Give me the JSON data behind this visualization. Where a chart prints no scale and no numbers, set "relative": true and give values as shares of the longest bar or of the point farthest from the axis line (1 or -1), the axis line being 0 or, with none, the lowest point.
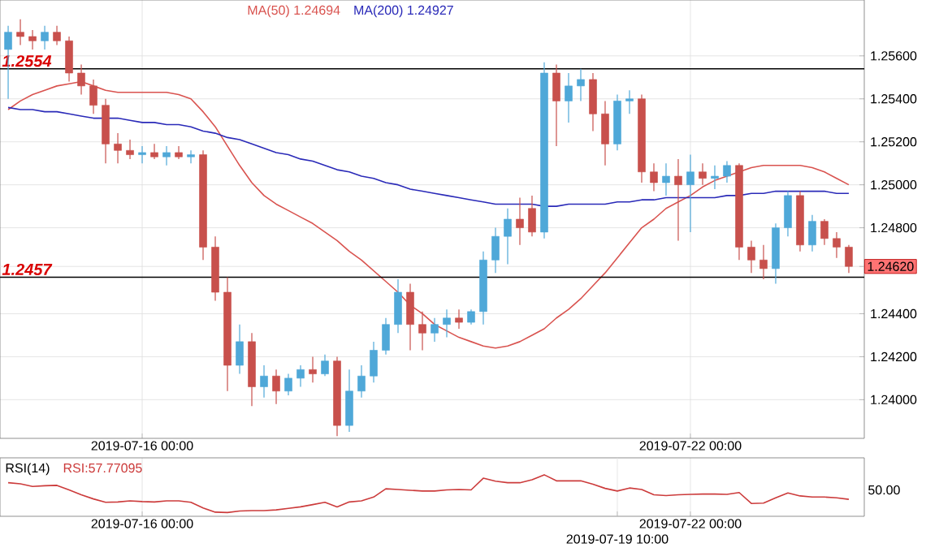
{
  "chart_data": [
    {
      "type": "candlestick",
      "categories": [
        null,
        null,
        null,
        null,
        null,
        null,
        null,
        null,
        null,
        null,
        null,
        "2019-07-16 00:00",
        null,
        null,
        null,
        null,
        null,
        null,
        null,
        null,
        null,
        null,
        null,
        null,
        null,
        null,
        null,
        null,
        null,
        null,
        null,
        null,
        null,
        null,
        null,
        null,
        null,
        null,
        null,
        null,
        null,
        null,
        null,
        null,
        null,
        null,
        null,
        null,
        null,
        null,
        null,
        null,
        null,
        null,
        null,
        null,
        "2019-07-22 00:00",
        null,
        null,
        null,
        null,
        null,
        null,
        null,
        null,
        null,
        null,
        null,
        null,
        null
      ],
      "ohlc": [
        [
          1.2563,
          1.2574,
          1.254,
          1.2571
        ],
        [
          1.2571,
          1.2577,
          1.2565,
          1.2569
        ],
        [
          1.2569,
          1.2572,
          1.2563,
          1.2567
        ],
        [
          1.2567,
          1.2574,
          1.2563,
          1.2571
        ],
        [
          1.2571,
          1.2574,
          1.2565,
          1.2567
        ],
        [
          1.2567,
          1.2569,
          1.2548,
          1.2552
        ],
        [
          1.2552,
          1.2556,
          1.2542,
          1.2546
        ],
        [
          1.2546,
          1.2549,
          1.2533,
          1.2537
        ],
        [
          1.2537,
          1.254,
          1.251,
          1.2519
        ],
        [
          1.2519,
          1.2524,
          1.251,
          1.2516
        ],
        [
          1.2516,
          1.2521,
          1.2512,
          1.2514
        ],
        [
          1.2514,
          1.2518,
          1.251,
          1.2515
        ],
        [
          1.2515,
          1.2519,
          1.2512,
          1.2513
        ],
        [
          1.2513,
          1.2518,
          1.2509,
          1.2515
        ],
        [
          1.2515,
          1.2518,
          1.2512,
          1.2513
        ],
        [
          1.2513,
          1.2516,
          1.251,
          1.2514
        ],
        [
          1.2514,
          1.2516,
          1.2465,
          1.2471
        ],
        [
          1.2471,
          1.2476,
          1.2446,
          1.245
        ],
        [
          1.245,
          1.2457,
          1.2404,
          1.2416
        ],
        [
          1.2416,
          1.2435,
          1.2412,
          1.2427
        ],
        [
          1.2427,
          1.2431,
          1.2397,
          1.2406
        ],
        [
          1.2406,
          1.2416,
          1.2401,
          1.2411
        ],
        [
          1.2411,
          1.2414,
          1.2398,
          1.2404
        ],
        [
          1.2404,
          1.2412,
          1.2402,
          1.241
        ],
        [
          1.241,
          1.2416,
          1.2406,
          1.2414
        ],
        [
          1.2414,
          1.242,
          1.2408,
          1.2412
        ],
        [
          1.2412,
          1.2421,
          1.2411,
          1.2418
        ],
        [
          1.2418,
          1.242,
          1.2383,
          1.2388
        ],
        [
          1.2388,
          1.2414,
          1.2385,
          1.2404
        ],
        [
          1.2404,
          1.2416,
          1.2401,
          1.2411
        ],
        [
          1.2411,
          1.2427,
          1.2408,
          1.2423
        ],
        [
          1.2423,
          1.2438,
          1.2421,
          1.2435
        ],
        [
          1.2435,
          1.2456,
          1.2431,
          1.245
        ],
        [
          1.245,
          1.2454,
          1.2423,
          1.2435
        ],
        [
          1.2435,
          1.2441,
          1.2423,
          1.2431
        ],
        [
          1.2431,
          1.2438,
          1.2427,
          1.2435
        ],
        [
          1.2435,
          1.2442,
          1.2429,
          1.2438
        ],
        [
          1.2438,
          1.2442,
          1.2433,
          1.2436
        ],
        [
          1.2436,
          1.2442,
          1.2435,
          1.2441
        ],
        [
          1.2441,
          1.2469,
          1.2435,
          1.2465
        ],
        [
          1.2465,
          1.248,
          1.2459,
          1.2476
        ],
        [
          1.2476,
          1.2489,
          1.2463,
          1.2484
        ],
        [
          1.2484,
          1.2494,
          1.2472,
          1.248
        ],
        [
          1.2489,
          1.2495,
          1.2476,
          1.2478
        ],
        [
          1.2478,
          1.2557,
          1.2475,
          1.2552
        ],
        [
          1.2552,
          1.2556,
          1.2518,
          1.2539
        ],
        [
          1.2539,
          1.2552,
          1.2529,
          1.2546
        ],
        [
          1.2546,
          1.2554,
          1.2539,
          1.2549
        ],
        [
          1.2549,
          1.2552,
          1.2525,
          1.2533
        ],
        [
          1.2533,
          1.2539,
          1.2509,
          1.2519
        ],
        [
          1.2519,
          1.2542,
          1.2516,
          1.2539
        ],
        [
          1.2539,
          1.2544,
          1.2533,
          1.254
        ],
        [
          1.254,
          1.2542,
          1.2501,
          1.2506
        ],
        [
          1.2506,
          1.251,
          1.2497,
          1.2501
        ],
        [
          1.2501,
          1.251,
          1.2495,
          1.2504
        ],
        [
          1.2504,
          1.2512,
          1.2474,
          1.25
        ],
        [
          1.25,
          1.2514,
          1.2478,
          1.2506
        ],
        [
          1.2506,
          1.251,
          1.25,
          1.2503
        ],
        [
          1.2503,
          1.2509,
          1.2498,
          1.2504
        ],
        [
          1.2504,
          1.2511,
          1.2501,
          1.2509
        ],
        [
          1.2509,
          1.251,
          1.2465,
          1.2471
        ],
        [
          1.2471,
          1.2474,
          1.2459,
          1.2465
        ],
        [
          1.2465,
          1.2472,
          1.2456,
          1.2461
        ],
        [
          1.2461,
          1.2482,
          1.2454,
          1.248
        ],
        [
          1.248,
          1.2497,
          1.2476,
          1.2495
        ],
        [
          1.2495,
          1.2497,
          1.2469,
          1.2472
        ],
        [
          1.2472,
          1.2486,
          1.2469,
          1.2483
        ],
        [
          1.2483,
          1.2484,
          1.2472,
          1.2475
        ],
        [
          1.2475,
          1.2478,
          1.2466,
          1.2471
        ],
        [
          1.2471,
          1.2472,
          1.2459,
          1.2462
        ]
      ],
      "colors": [
        "#4fa8d8",
        "#c8504c",
        "#c8504c",
        "#4fa8d8",
        "#c8504c",
        "#c8504c",
        "#c8504c",
        "#c8504c",
        "#c8504c",
        "#c8504c",
        "#c8504c",
        "#4fa8d8",
        "#c8504c",
        "#4fa8d8",
        "#c8504c",
        "#4fa8d8",
        "#c8504c",
        "#c8504c",
        "#c8504c",
        "#4fa8d8",
        "#c8504c",
        "#4fa8d8",
        "#c8504c",
        "#4fa8d8",
        "#4fa8d8",
        "#c8504c",
        "#4fa8d8",
        "#c8504c",
        "#4fa8d8",
        "#4fa8d8",
        "#4fa8d8",
        "#4fa8d8",
        "#4fa8d8",
        "#c8504c",
        "#c8504c",
        "#4fa8d8",
        "#4fa8d8",
        "#c8504c",
        "#4fa8d8",
        "#4fa8d8",
        "#4fa8d8",
        "#4fa8d8",
        "#c8504c",
        "#c8504c",
        "#4fa8d8",
        "#c8504c",
        "#4fa8d8",
        "#4fa8d8",
        "#c8504c",
        "#c8504c",
        "#4fa8d8",
        "#4fa8d8",
        "#c8504c",
        "#c8504c",
        "#4fa8d8",
        "#c8504c",
        "#4fa8d8",
        "#c8504c",
        "#4fa8d8",
        "#4fa8d8",
        "#c8504c",
        "#c8504c",
        "#c8504c",
        "#4fa8d8",
        "#4fa8d8",
        "#c8504c",
        "#4fa8d8",
        "#c8504c",
        "#c8504c",
        "#c8504c"
      ],
      "series": [
        {
          "type": "line",
          "name": "MA(50) 1.24694",
          "color": "#d9534f",
          "values": [
            1.2535,
            1.2539,
            1.2542,
            1.2544,
            1.2546,
            1.2547,
            1.2548,
            1.2546,
            1.2544,
            1.2543,
            1.2543,
            1.2543,
            1.2543,
            1.2543,
            1.2542,
            1.254,
            1.2534,
            1.2527,
            1.2518,
            1.2509,
            1.2501,
            1.2495,
            1.2491,
            1.2488,
            1.2485,
            1.2482,
            1.2478,
            1.2474,
            1.2469,
            1.2465,
            1.246,
            1.2455,
            1.245,
            1.2444,
            1.244,
            1.2435,
            1.2432,
            1.2429,
            1.2427,
            1.2425,
            1.2424,
            1.2425,
            1.2427,
            1.243,
            1.2433,
            1.2438,
            1.2442,
            1.2447,
            1.2453,
            1.2459,
            1.2466,
            1.2473,
            1.248,
            1.2484,
            1.2489,
            1.2492,
            1.2495,
            1.2499,
            1.2502,
            1.2504,
            1.2506,
            1.2508,
            1.2509,
            1.2509,
            1.2509,
            1.2509,
            1.2508,
            1.2506,
            1.2503,
            1.25
          ]
        },
        {
          "type": "line",
          "name": "MA(200) 1.24927",
          "color": "#2a2ab8",
          "values": [
            1.2536,
            1.2535,
            1.2535,
            1.2534,
            1.2534,
            1.2533,
            1.2532,
            1.2531,
            1.2531,
            1.2531,
            1.253,
            1.2529,
            1.2529,
            1.2528,
            1.2528,
            1.2527,
            1.2525,
            1.2524,
            1.2522,
            1.2521,
            1.2519,
            1.2517,
            1.2515,
            1.2514,
            1.2512,
            1.2511,
            1.2509,
            1.2507,
            1.2506,
            1.2504,
            1.2503,
            1.2501,
            1.25,
            1.2498,
            1.2497,
            1.2496,
            1.2495,
            1.2494,
            1.2493,
            1.2492,
            1.2491,
            1.2491,
            1.2491,
            1.2491,
            1.249,
            1.249,
            1.2491,
            1.2491,
            1.2491,
            1.2491,
            1.2492,
            1.2492,
            1.2493,
            1.2493,
            1.2494,
            1.2494,
            1.2494,
            1.2494,
            1.2494,
            1.2495,
            1.2495,
            1.2496,
            1.2496,
            1.2497,
            1.2497,
            1.2497,
            1.2497,
            1.2497,
            1.2496,
            1.2496
          ]
        }
      ],
      "ylim": [
        1.2382,
        1.2586
      ],
      "yticks": [
        {
          "value": 1.256,
          "label": "1.25600"
        },
        {
          "value": 1.254,
          "label": "1.25400"
        },
        {
          "value": 1.252,
          "label": "1.25200"
        },
        {
          "value": 1.25,
          "label": "1.25000"
        },
        {
          "value": 1.248,
          "label": "1.24800"
        },
        {
          "value": 1.2462,
          "label": "1.24620"
        },
        {
          "value": 1.244,
          "label": "1.24400"
        },
        {
          "value": 1.242,
          "label": "1.24200"
        },
        {
          "value": 1.24,
          "label": "1.24000"
        }
      ],
      "ref_lines": [
        {
          "axis": "y",
          "value": 1.2554,
          "label": "1.2554",
          "color": "#000000"
        },
        {
          "axis": "y",
          "value": 1.2457,
          "label": "1.2457",
          "color": "#000000"
        }
      ],
      "grid": true,
      "legend": "top"
    },
    {
      "type": "line",
      "title": "RSI(14)",
      "relative": true,
      "categories": [
        null,
        null,
        null,
        null,
        null,
        null,
        null,
        null,
        null,
        null,
        null,
        "2019-07-16 00:00",
        null,
        null,
        null,
        null,
        null,
        null,
        null,
        null,
        null,
        null,
        null,
        null,
        null,
        null,
        null,
        null,
        null,
        null,
        null,
        null,
        null,
        null,
        null,
        null,
        null,
        null,
        null,
        null,
        null,
        null,
        null,
        null,
        null,
        null,
        null,
        null,
        null,
        null,
        "2019-07-19 10:00",
        null,
        null,
        null,
        null,
        null,
        "2019-07-22 00:00",
        null,
        null,
        null,
        null,
        null,
        null,
        null,
        null,
        null,
        null,
        null,
        null,
        null
      ],
      "series": [
        {
          "name": "RSI:57.77095",
          "color": "#cc3b3b",
          "values": [
            0.79,
            0.76,
            0.69,
            0.71,
            0.72,
            0.6,
            0.47,
            0.36,
            0.27,
            0.28,
            0.31,
            0.29,
            0.28,
            0.31,
            0.31,
            0.27,
            0.12,
            0.01,
            0,
            0.04,
            0.05,
            0.05,
            0.07,
            0.11,
            0.15,
            0.21,
            0.27,
            0.15,
            0.28,
            0.31,
            0.41,
            0.63,
            0.61,
            0.59,
            0.57,
            0.57,
            0.6,
            0.61,
            0.6,
            0.91,
            0.83,
            0.79,
            0.79,
            0.87,
            1,
            0.84,
            0.84,
            0.84,
            0.75,
            0.64,
            0.57,
            0.65,
            0.61,
            0.47,
            0.45,
            0.47,
            0.48,
            0.49,
            0.49,
            0.48,
            0.53,
            0.24,
            0.25,
            0.39,
            0.52,
            0.44,
            0.41,
            0.41,
            0.39,
            0.35
          ]
        }
      ],
      "annotations": [
        "50.00"
      ],
      "grid": "x"
    }
  ]
}
